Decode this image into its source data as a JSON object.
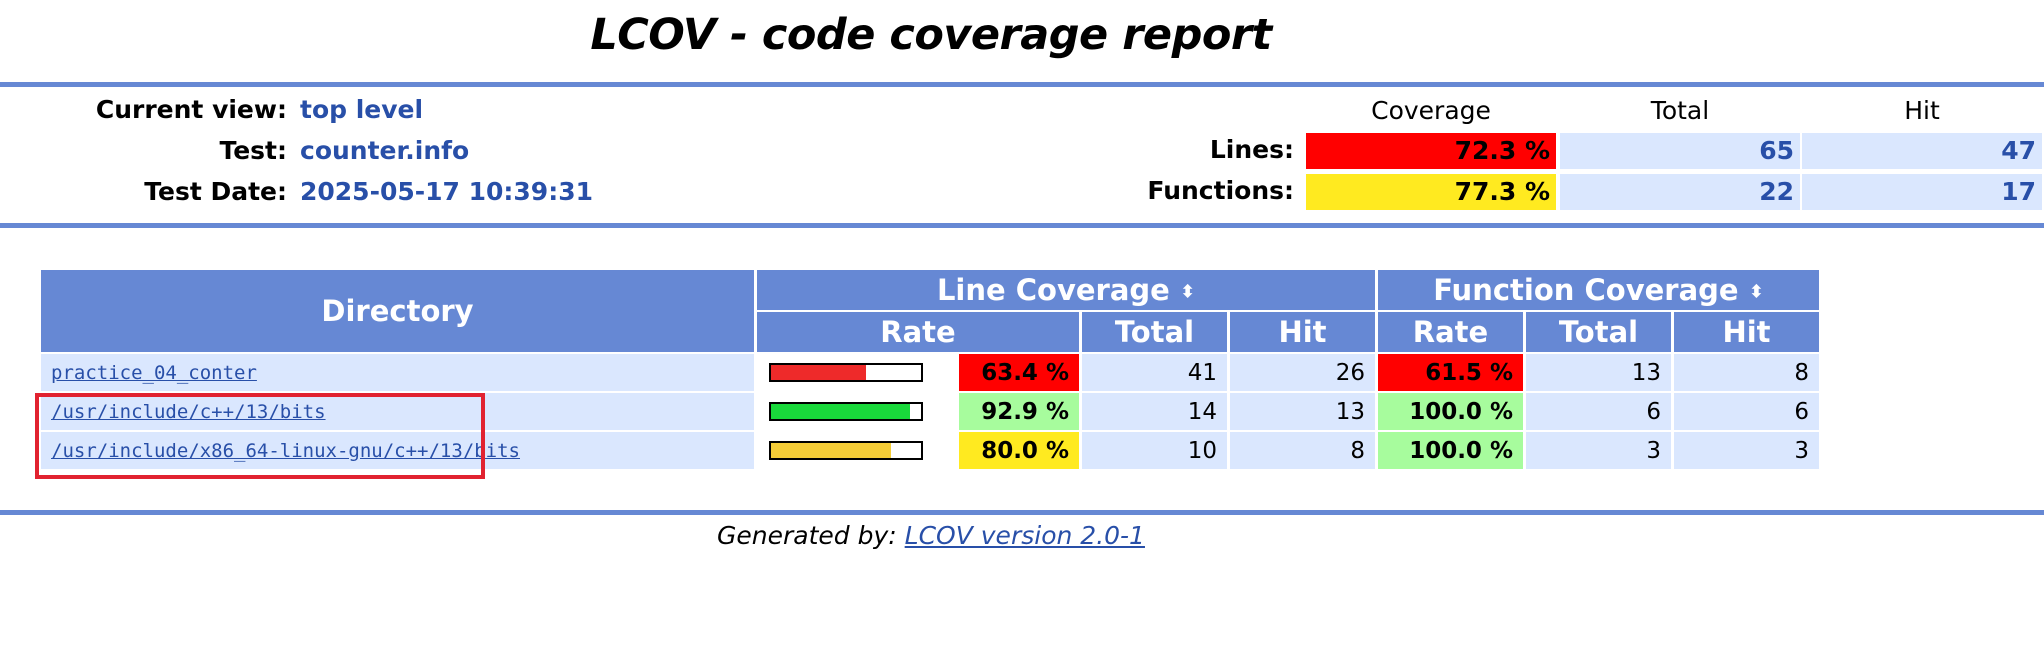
{
  "header": {
    "title": "LCOV - code coverage report",
    "current_view_label": "Current view:",
    "current_view": "top level",
    "test_label": "Test:",
    "test": "counter.info",
    "test_date_label": "Test Date:",
    "test_date": "2025-05-17 10:39:31"
  },
  "summary": {
    "col_coverage": "Coverage",
    "col_total": "Total",
    "col_hit": "Hit",
    "lines": {
      "label": "Lines:",
      "rate": "72.3 %",
      "total": "65",
      "hit": "47"
    },
    "functions": {
      "label": "Functions:",
      "rate": "77.3 %",
      "total": "22",
      "hit": "17"
    }
  },
  "table": {
    "col_directory": "Directory",
    "col_line_coverage": "Line Coverage",
    "col_function_coverage": "Function Coverage",
    "col_rate": "Rate",
    "col_total": "Total",
    "col_hit": "Hit",
    "sort_glyph": "⬍",
    "rows": [
      {
        "dir": "practice_04_conter",
        "line_pct": 63.4,
        "line_rate": "63.4 %",
        "line_total": "41",
        "line_hit": "26",
        "func_rate": "61.5 %",
        "func_total": "13",
        "func_hit": "8",
        "bar_color": "#ee2a2a"
      },
      {
        "dir": "/usr/include/c++/13/bits",
        "line_pct": 92.9,
        "line_rate": "92.9 %",
        "line_total": "14",
        "line_hit": "13",
        "func_rate": "100.0 %",
        "func_total": "6",
        "func_hit": "6",
        "bar_color": "#19d93b"
      },
      {
        "dir": "/usr/include/x86_64-linux-gnu/c++/13/bits",
        "line_pct": 80.0,
        "line_rate": "80.0 %",
        "line_total": "10",
        "line_hit": "8",
        "func_rate": "100.0 %",
        "func_total": "3",
        "func_hit": "3",
        "bar_color": "#f5cd37"
      }
    ]
  },
  "footer": {
    "generated_by": "Generated by:",
    "link": "LCOV version 2.0-1"
  },
  "colors": {
    "header_blue": "#6688d4",
    "cell_blue": "#dae7fe",
    "low": "#ff0000",
    "medium": "#ffea20",
    "high": "#a7fc9d",
    "highlight_box": "#e12230"
  }
}
